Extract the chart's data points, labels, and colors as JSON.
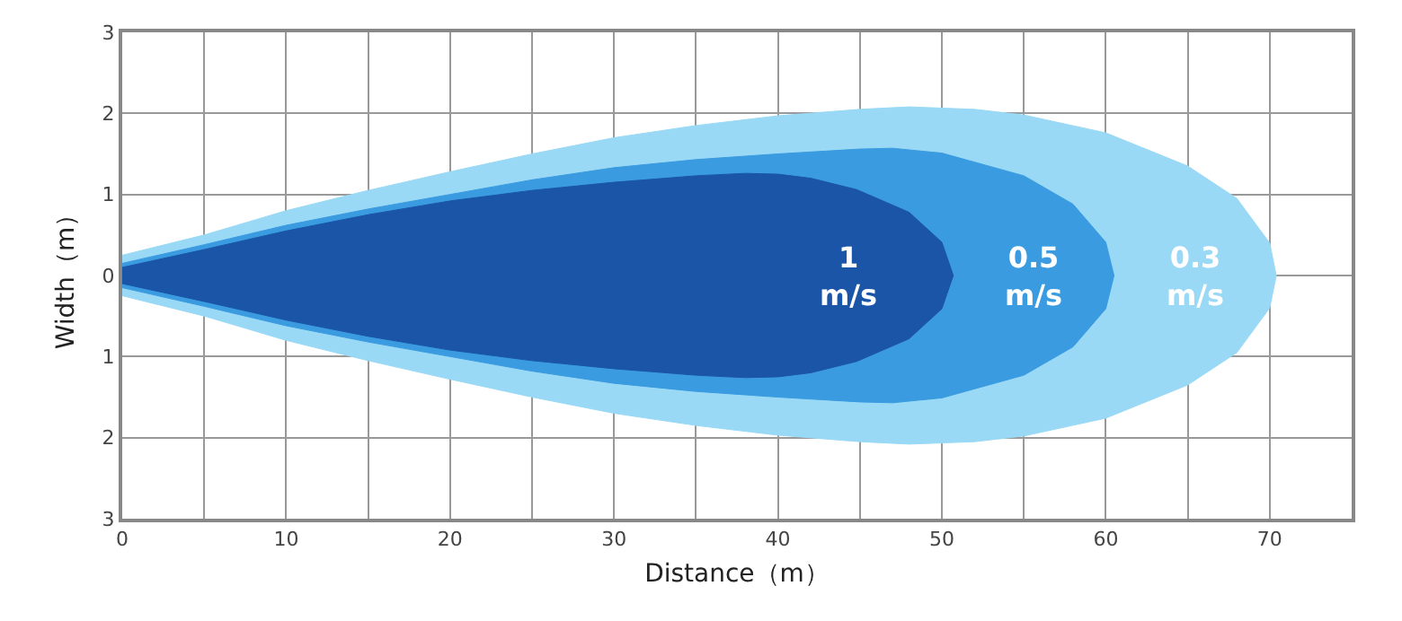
{
  "chart_data": {
    "type": "area",
    "xlabel": "Distance（m）",
    "ylabel": "Width（m）",
    "xlim": [
      0,
      75
    ],
    "ylim": [
      -3,
      3
    ],
    "xticks": [
      0,
      {
        "value": 5,
        "label": null
      },
      10,
      {
        "value": 15,
        "label": null
      },
      20,
      {
        "value": 25,
        "label": null
      },
      30,
      {
        "value": 35,
        "label": null
      },
      40,
      {
        "value": 45,
        "label": null
      },
      50,
      {
        "value": 55,
        "label": null
      },
      60,
      {
        "value": 65,
        "label": null
      },
      70
    ],
    "yticks": [
      {
        "value": -3,
        "label": "3"
      },
      {
        "value": -2,
        "label": "2"
      },
      {
        "value": -1,
        "label": "1"
      },
      0,
      1,
      2,
      3
    ],
    "grid": true,
    "legend": false,
    "series": [
      {
        "name": "0.3\nm/s",
        "color": "#9ad9f5",
        "x": [
          0,
          5,
          10,
          15,
          20,
          25,
          30,
          35,
          40,
          45,
          48,
          52,
          55,
          60,
          65,
          68,
          70,
          70.4
        ],
        "values": [
          0.25,
          0.5,
          0.8,
          1.05,
          1.28,
          1.5,
          1.7,
          1.85,
          1.97,
          2.05,
          2.08,
          2.05,
          1.98,
          1.76,
          1.35,
          0.95,
          0.4,
          0
        ]
      },
      {
        "color": "#9ad9f5",
        "x": [
          0,
          5,
          10,
          15,
          20,
          25,
          30,
          35,
          40,
          45,
          48,
          52,
          55,
          60,
          65,
          68,
          70,
          70.4
        ],
        "values": [
          -0.25,
          -0.5,
          -0.8,
          -1.05,
          -1.28,
          -1.5,
          -1.7,
          -1.85,
          -1.97,
          -2.05,
          -2.08,
          -2.05,
          -1.98,
          -1.76,
          -1.35,
          -0.95,
          -0.4,
          0
        ]
      },
      {
        "name": "0.5\nm/s",
        "color": "#3a9be0",
        "x": [
          0,
          5,
          10,
          15,
          20,
          25,
          30,
          35,
          40,
          45,
          47,
          50,
          55,
          58,
          60,
          60.5
        ],
        "values": [
          0.15,
          0.38,
          0.62,
          0.82,
          1.0,
          1.18,
          1.33,
          1.43,
          1.5,
          1.56,
          1.57,
          1.51,
          1.23,
          0.88,
          0.41,
          0
        ]
      },
      {
        "color": "#3a9be0",
        "x": [
          0,
          5,
          10,
          15,
          20,
          25,
          30,
          35,
          40,
          45,
          47,
          50,
          55,
          58,
          60,
          60.5
        ],
        "values": [
          -0.15,
          -0.38,
          -0.62,
          -0.82,
          -1.0,
          -1.18,
          -1.33,
          -1.43,
          -1.5,
          -1.56,
          -1.57,
          -1.51,
          -1.23,
          -0.88,
          -0.41,
          0
        ]
      },
      {
        "name": "1\nm/s",
        "color": "#1b55a8",
        "x": [
          0,
          5,
          10,
          15,
          20,
          25,
          30,
          35,
          38,
          40,
          42,
          44.8,
          48,
          50,
          50.7
        ],
        "values": [
          0.1,
          0.32,
          0.55,
          0.75,
          0.92,
          1.05,
          1.15,
          1.23,
          1.26,
          1.25,
          1.2,
          1.06,
          0.78,
          0.41,
          0
        ]
      },
      {
        "color": "#1b55a8",
        "x": [
          0,
          5,
          10,
          15,
          20,
          25,
          30,
          35,
          38,
          40,
          42,
          44.8,
          48,
          50,
          50.7
        ],
        "values": [
          -0.1,
          -0.32,
          -0.55,
          -0.75,
          -0.92,
          -1.05,
          -1.15,
          -1.23,
          -1.26,
          -1.25,
          -1.2,
          -1.06,
          -0.78,
          -0.41,
          0
        ]
      }
    ]
  }
}
